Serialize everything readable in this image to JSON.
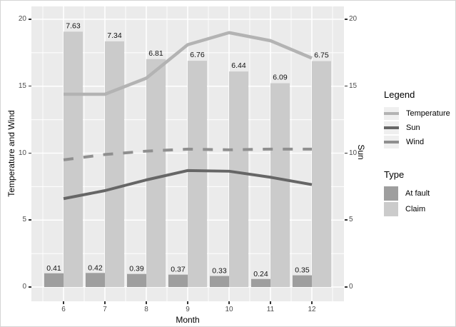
{
  "chart_data": {
    "type": "bar",
    "subtype": "grouped-bars-with-lines-dual-axis",
    "x": [
      6,
      7,
      8,
      9,
      10,
      11,
      12
    ],
    "xlabel": "Month",
    "ylabel_left": "Temperature and Wind",
    "ylabel_right": "Sun",
    "ylim": [
      0,
      20
    ],
    "yticks": [
      0,
      5,
      10,
      15,
      20
    ],
    "grid": true,
    "bar_value_scale": 2.5,
    "bar_series": [
      {
        "name": "At fault",
        "color": "#9e9e9e",
        "values": [
          0.41,
          0.42,
          0.39,
          0.37,
          0.33,
          0.24,
          0.35
        ]
      },
      {
        "name": "Claim",
        "color": "#cbcbcb",
        "values": [
          7.63,
          7.34,
          6.81,
          6.76,
          6.44,
          6.09,
          6.75
        ]
      }
    ],
    "line_series": [
      {
        "name": "Temperature",
        "color": "#b3b3b3",
        "width": 4.5,
        "dash": "",
        "values": [
          14.4,
          14.4,
          15.6,
          18.1,
          19.0,
          18.4,
          17.1
        ]
      },
      {
        "name": "Sun",
        "color": "#666666",
        "width": 4,
        "dash": "",
        "values": [
          6.6,
          7.2,
          8.0,
          8.7,
          8.65,
          8.2,
          7.65
        ]
      },
      {
        "name": "Wind",
        "color": "#8f8f8f",
        "width": 4,
        "dash": "14 14",
        "values": [
          9.5,
          9.9,
          10.15,
          10.3,
          10.25,
          10.3,
          10.3
        ]
      }
    ],
    "legend_line_title": "Legend",
    "legend_fill_title": "Type",
    "colors": {
      "figure_background": "#ffffff",
      "panel_background": "#ebebeb",
      "grid": "#ffffff",
      "tick_text": "#4d4d4d",
      "tick_mark": "#333333"
    }
  }
}
